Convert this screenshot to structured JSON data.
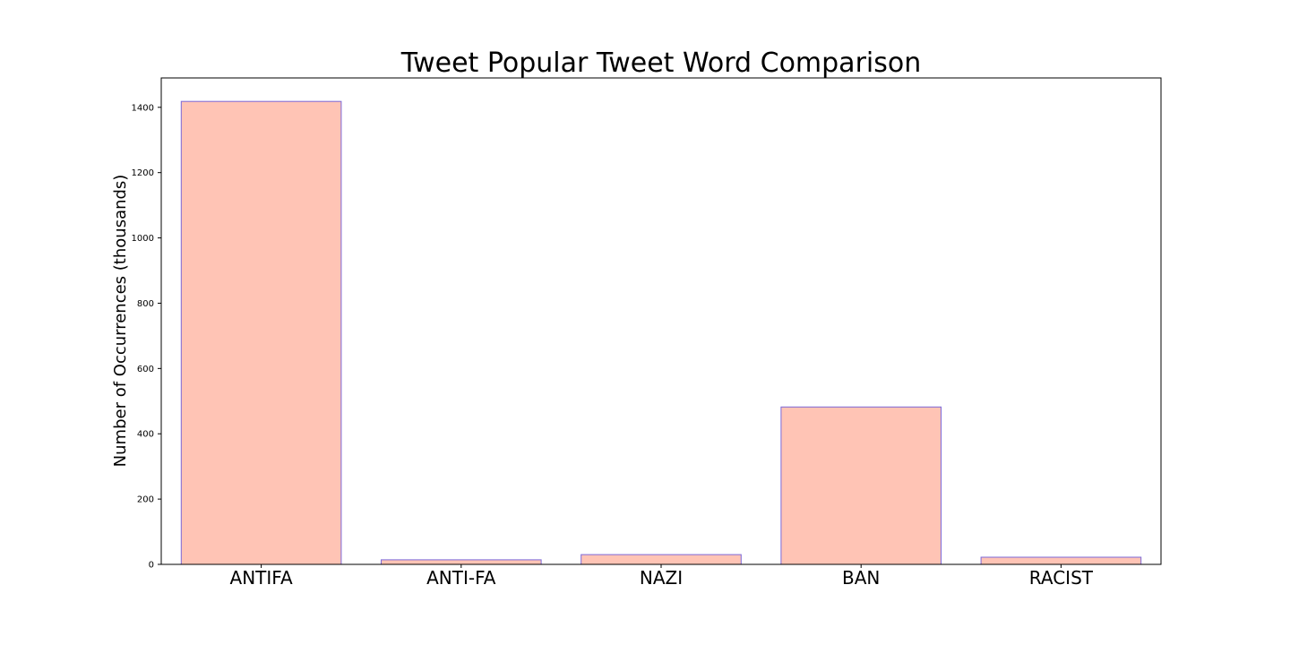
{
  "chart_data": {
    "type": "bar",
    "title": "Tweet Popular Tweet Word Comparison",
    "xlabel": "",
    "ylabel": "Number of Occurrences (thousands)",
    "categories": [
      "ANTIFA",
      "ANTI-FA",
      "NAZI",
      "BAN",
      "RACIST"
    ],
    "values": [
      1418,
      14,
      30,
      482,
      22
    ],
    "ylim": [
      0,
      1490
    ],
    "yticks": [
      0,
      200,
      400,
      600,
      800,
      1000,
      1200,
      1400
    ],
    "grid": false,
    "colors": {
      "bar_fill": "#ffc4b5",
      "bar_edge": "#7b68d8"
    }
  }
}
